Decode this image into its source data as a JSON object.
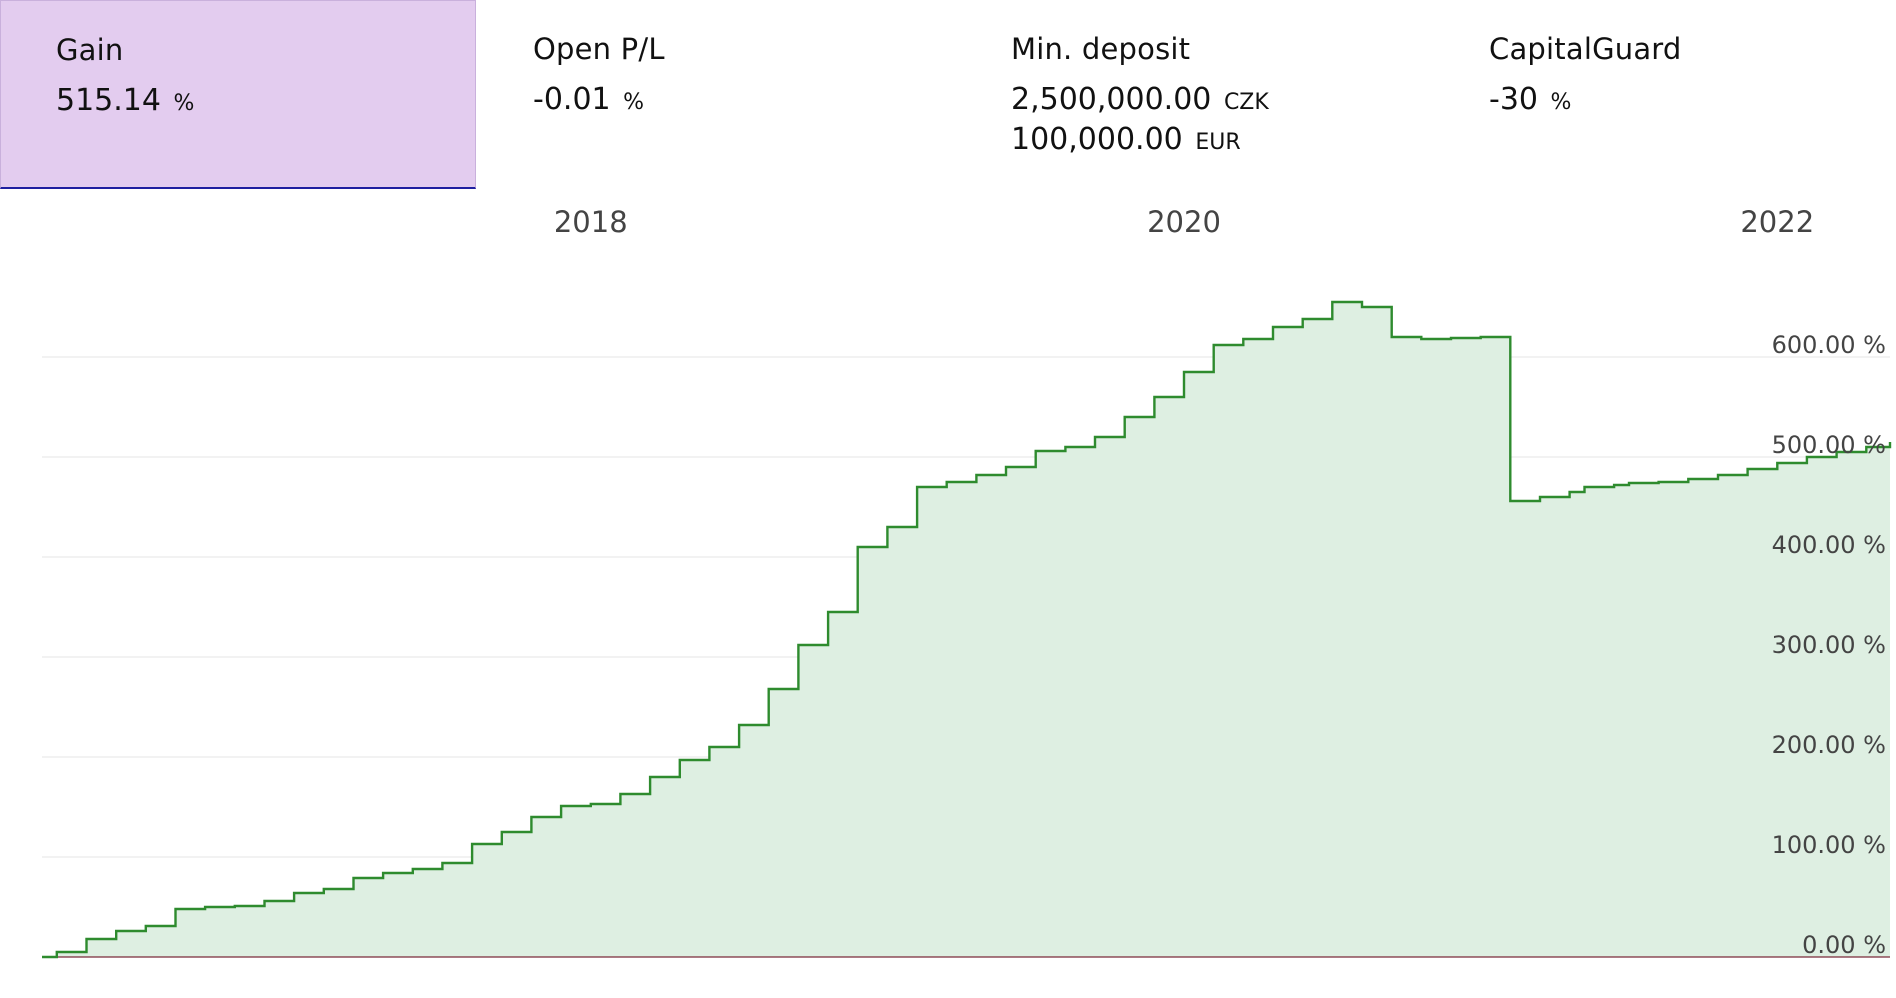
{
  "stats": [
    {
      "label": "Gain",
      "value": "515.14",
      "unit": "%",
      "active": true
    },
    {
      "label": "Open P/L",
      "value": "-0.01",
      "unit": "%"
    },
    {
      "label": "Min. deposit",
      "value": "2,500,000.00",
      "unit": "CZK",
      "value2": "100,000.00",
      "unit2": "EUR"
    },
    {
      "label": "CapitalGuard",
      "value": "-30",
      "unit": "%"
    }
  ],
  "colors": {
    "line": "#2e8b2e",
    "fill": "#deefe2",
    "grid": "#e4e4e4",
    "baseline": "#7a2a3a",
    "active_panel": "#e3ccef"
  },
  "chart_data": {
    "type": "area",
    "x_axis": {
      "position": "top",
      "ticks": [
        "2018",
        "2020",
        "2022"
      ],
      "tick_values": [
        2018,
        2020,
        2022
      ]
    },
    "y_axis": {
      "position": "right",
      "ticks": [
        "0.00 %",
        "100.00 %",
        "200.00 %",
        "300.00 %",
        "400.00 %",
        "500.00 %",
        "600.00 %"
      ],
      "tick_values": [
        0,
        100,
        200,
        300,
        400,
        500,
        600
      ]
    },
    "xlim": [
      2016.15,
      2022.38
    ],
    "ylim": [
      0,
      670
    ],
    "grid": true,
    "legend": "none",
    "series": [
      {
        "x": [
          2016.15,
          2016.2,
          2016.3,
          2016.4,
          2016.5,
          2016.6,
          2016.7,
          2016.8,
          2016.9,
          2017.0,
          2017.1,
          2017.2,
          2017.3,
          2017.4,
          2017.5,
          2017.6,
          2017.7,
          2017.8,
          2017.9,
          2018.0,
          2018.1,
          2018.2,
          2018.3,
          2018.4,
          2018.5,
          2018.6,
          2018.7,
          2018.8,
          2018.9,
          2019.0,
          2019.1,
          2019.2,
          2019.3,
          2019.4,
          2019.5,
          2019.6,
          2019.7,
          2019.8,
          2019.9,
          2020.0,
          2020.1,
          2020.2,
          2020.3,
          2020.4,
          2020.5,
          2020.6,
          2020.7,
          2020.8,
          2020.9,
          2021.0,
          2021.1,
          2021.2,
          2021.3,
          2021.35,
          2021.45,
          2021.5,
          2021.6,
          2021.7,
          2021.8,
          2021.9,
          2022.0,
          2022.1,
          2022.2,
          2022.3,
          2022.38
        ],
        "y": [
          0,
          5,
          18,
          26,
          31,
          48,
          50,
          51,
          56,
          64,
          68,
          79,
          84,
          88,
          94,
          113,
          125,
          140,
          151,
          153,
          163,
          180,
          197,
          210,
          232,
          268,
          312,
          345,
          410,
          430,
          470,
          475,
          482,
          490,
          506,
          510,
          520,
          540,
          560,
          585,
          612,
          618,
          630,
          638,
          655,
          650,
          620,
          618,
          619,
          620,
          456,
          460,
          465,
          470,
          472,
          474,
          475,
          478,
          482,
          488,
          494,
          500,
          505,
          510,
          515
        ]
      }
    ]
  }
}
